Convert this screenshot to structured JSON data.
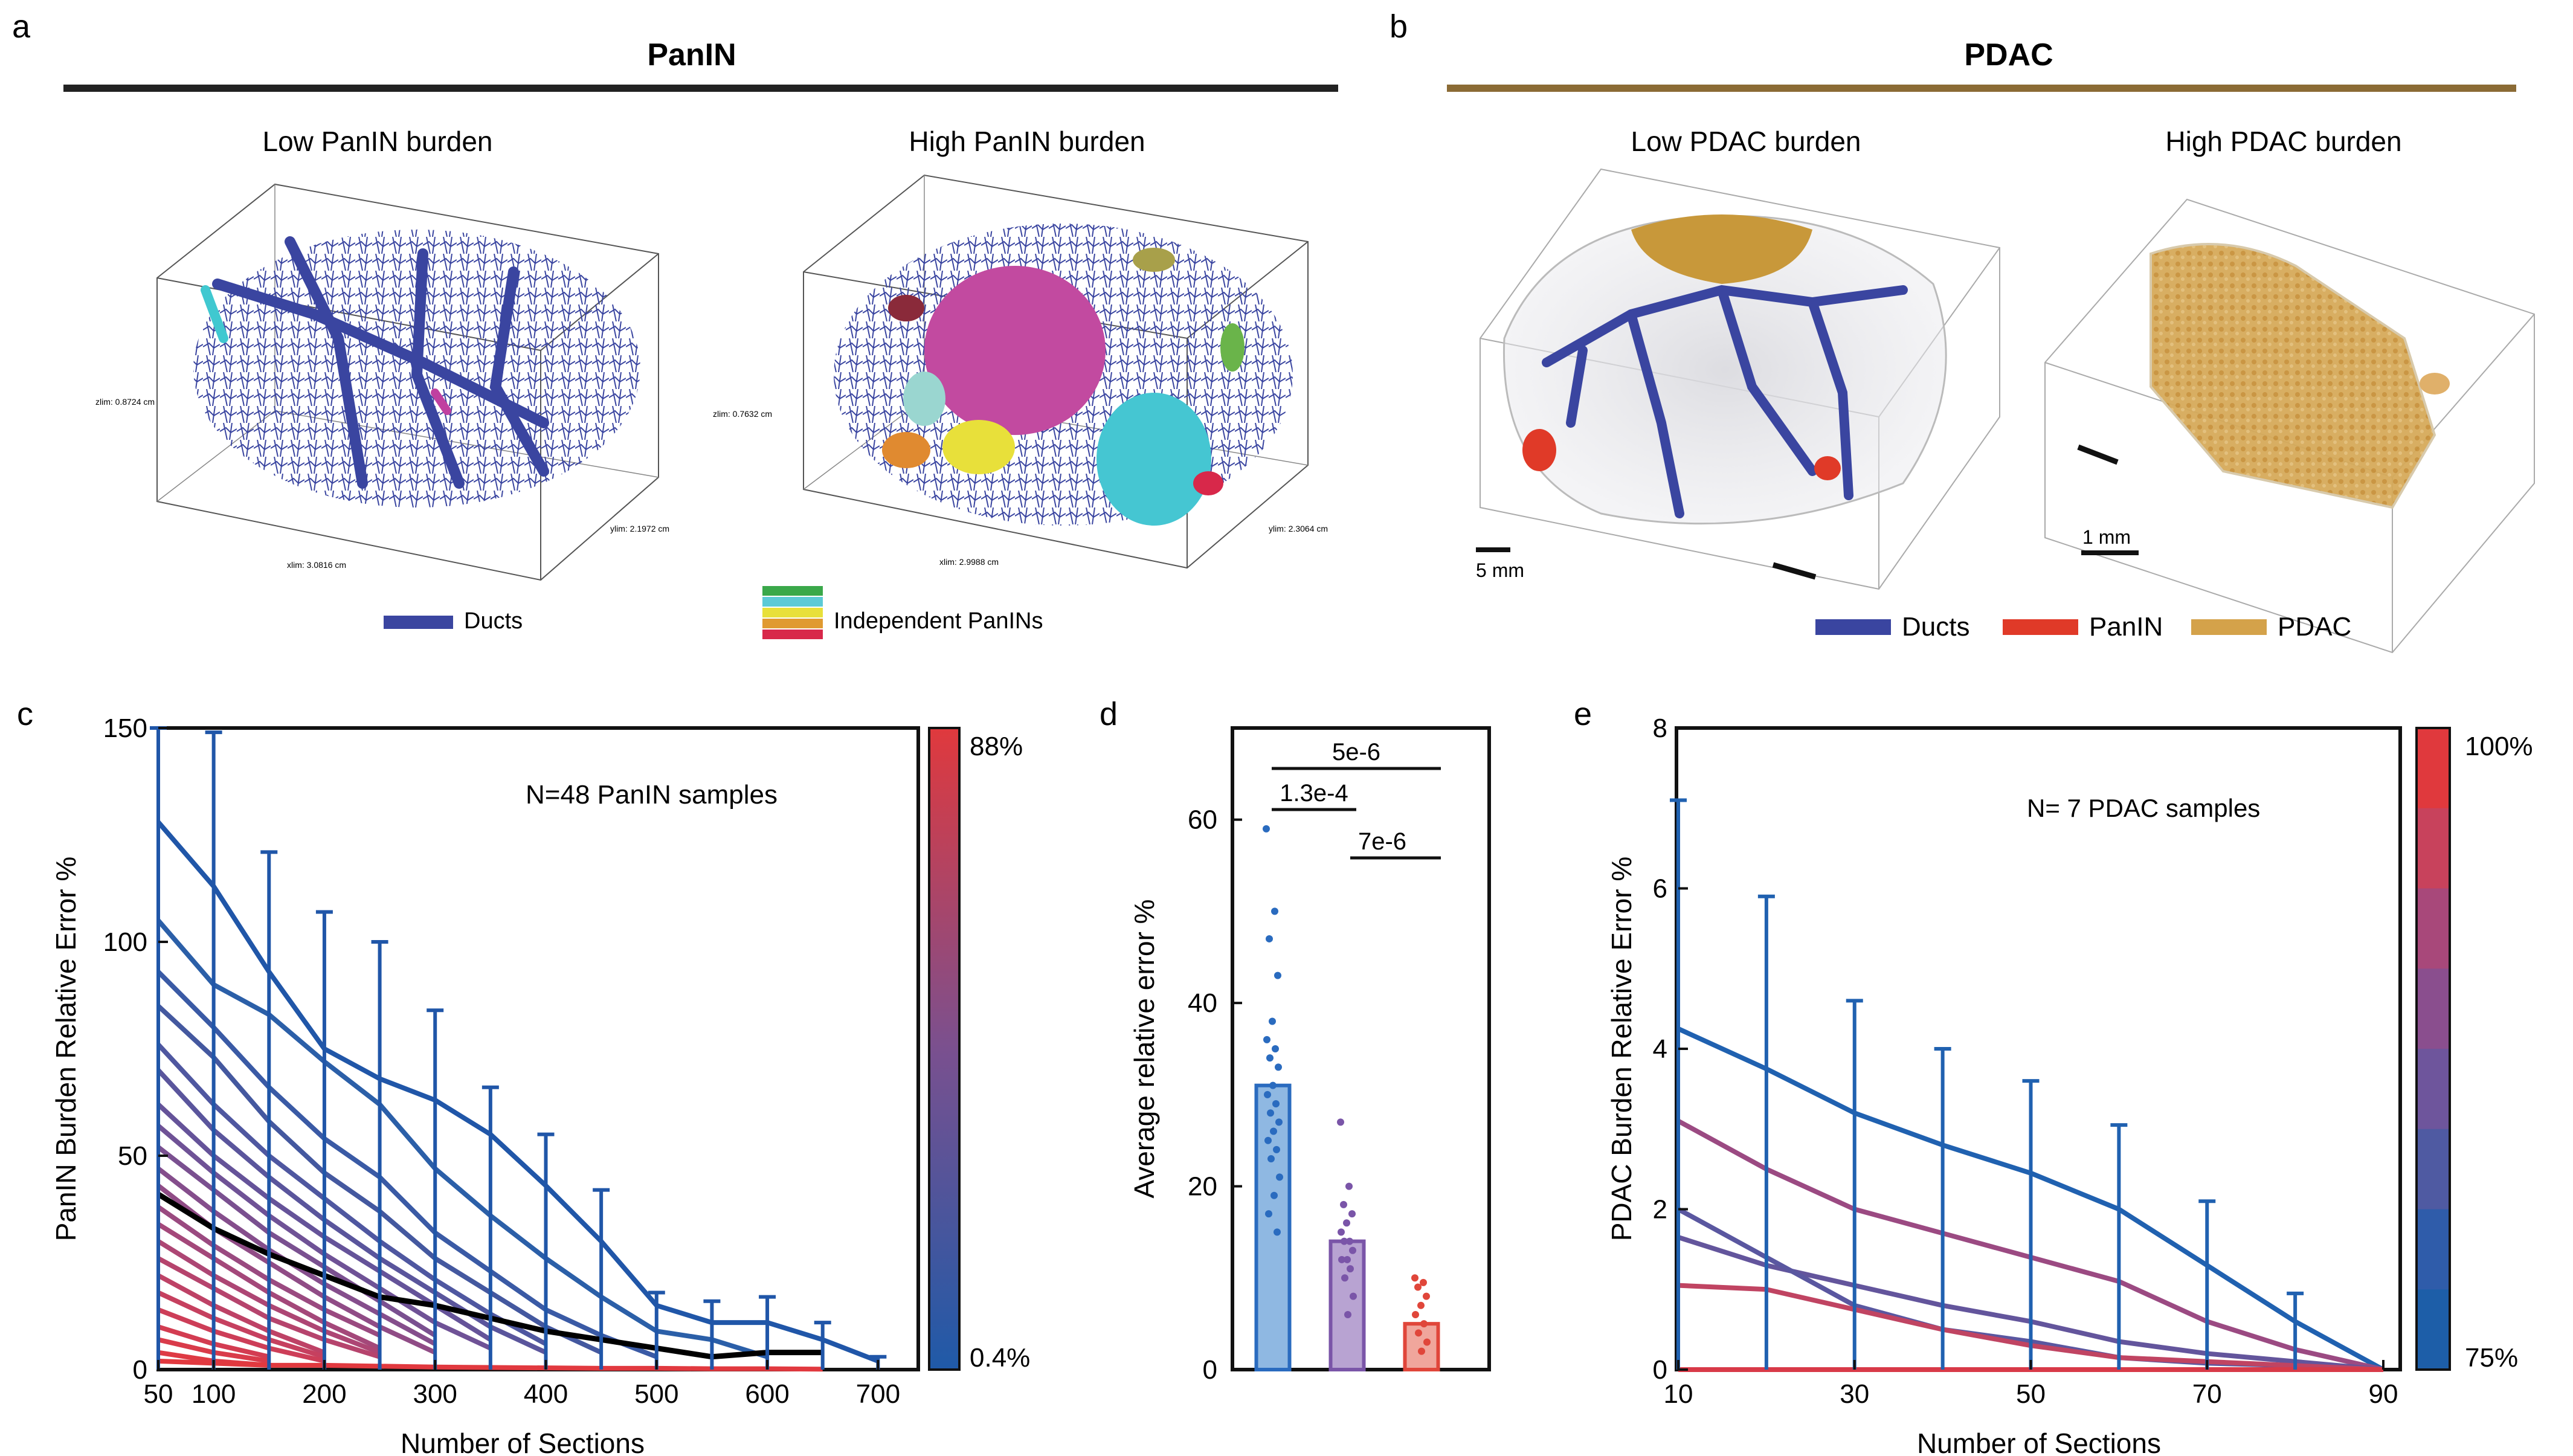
{
  "panels": {
    "a": {
      "letter": "a",
      "header": "PanIN",
      "left_title": "Low PanIN burden",
      "right_title": "High PanIN burden",
      "low_axes": {
        "x": "xlim: 3.0816 cm",
        "y": "ylim: 2.1972 cm",
        "z": "zlim: 0.8724 cm"
      },
      "high_axes": {
        "x": "xlim: 2.9988 cm",
        "y": "ylim: 2.3064 cm",
        "z": "zlim: 0.7632 cm"
      },
      "legend_ducts": "Ducts",
      "legend_independent": "Independent PanINs",
      "colors": {
        "ducts": "#3a45a0",
        "header_bar": "#222222"
      }
    },
    "b": {
      "letter": "b",
      "header": "PDAC",
      "left_title": "Low PDAC burden",
      "right_title": "High PDAC burden",
      "scale_left": "5 mm",
      "scale_right": "1 mm",
      "legend": [
        "Ducts",
        "PanIN",
        "PDAC"
      ],
      "colors": {
        "ducts": "#3a45a0",
        "panin": "#e03a28",
        "pdac": "#d4a24a",
        "header_bar": "#8b6b35"
      }
    }
  },
  "chart_data": [
    {
      "panel": "c",
      "type": "line",
      "annotation": "N=48 PanIN samples",
      "xlabel": "Number of Sections",
      "ylabel": "PanIN Burden Relative Error %",
      "x_ticks": [
        50,
        100,
        200,
        300,
        400,
        500,
        600,
        700
      ],
      "y_ticks": [
        0,
        50,
        100,
        150
      ],
      "xlim": [
        50,
        720
      ],
      "ylim": [
        0,
        150
      ],
      "colorbar": {
        "top": "88%",
        "bottom": "0.4%"
      },
      "series": [
        {
          "color": "#2056a8",
          "x": [
            50,
            100,
            150,
            200,
            250,
            300,
            350,
            400,
            450,
            500,
            550,
            600,
            650,
            700
          ],
          "y": [
            128,
            113,
            93,
            75,
            68,
            63,
            55,
            43,
            30,
            15,
            11,
            11,
            7,
            2
          ]
        },
        {
          "color": "#2b5fa8",
          "x": [
            50,
            100,
            150,
            200,
            250,
            300,
            350,
            400,
            450,
            500,
            550,
            600
          ],
          "y": [
            105,
            90,
            83,
            72,
            62,
            47,
            36,
            26,
            17,
            9,
            7,
            3
          ]
        },
        {
          "color": "#3a5aa5",
          "x": [
            50,
            100,
            150,
            200,
            250,
            300,
            350,
            400,
            450,
            500
          ],
          "y": [
            93,
            80,
            66,
            54,
            45,
            32,
            23,
            14,
            8,
            3
          ]
        },
        {
          "color": "#44589f",
          "x": [
            50,
            100,
            150,
            200,
            250,
            300,
            350,
            400,
            450
          ],
          "y": [
            85,
            73,
            58,
            46,
            37,
            26,
            18,
            10,
            4
          ]
        },
        {
          "color": "#4f57a0",
          "x": [
            50,
            100,
            150,
            200,
            250,
            300,
            350,
            400
          ],
          "y": [
            76,
            62,
            50,
            40,
            30,
            21,
            13,
            6
          ]
        },
        {
          "color": "#5a559c",
          "x": [
            50,
            100,
            150,
            200,
            250,
            300,
            350,
            400
          ],
          "y": [
            70,
            56,
            45,
            35,
            26,
            18,
            10,
            4
          ]
        },
        {
          "color": "#655399",
          "x": [
            50,
            100,
            150,
            200,
            250,
            300,
            350
          ],
          "y": [
            62,
            50,
            40,
            31,
            23,
            15,
            7
          ]
        },
        {
          "color": "#6f5296",
          "x": [
            50,
            100,
            150,
            200,
            250,
            300,
            350
          ],
          "y": [
            57,
            46,
            36,
            27,
            19,
            11,
            5
          ]
        },
        {
          "color": "#7a5090",
          "x": [
            50,
            100,
            150,
            200,
            250,
            300
          ],
          "y": [
            52,
            42,
            32,
            24,
            16,
            8
          ]
        },
        {
          "color": "#854e8c",
          "x": [
            50,
            100,
            150,
            200,
            250,
            300
          ],
          "y": [
            47,
            37,
            28,
            20,
            13,
            6
          ]
        },
        {
          "color": "#904c86",
          "x": [
            50,
            100,
            150,
            200,
            250,
            300
          ],
          "y": [
            43,
            33,
            25,
            17,
            10,
            4
          ]
        },
        {
          "color": "#9a4a80",
          "x": [
            50,
            100,
            150,
            200,
            250
          ],
          "y": [
            38,
            29,
            21,
            14,
            8
          ]
        },
        {
          "color": "#a4487a",
          "x": [
            50,
            100,
            150,
            200,
            250
          ],
          "y": [
            34,
            26,
            18,
            11,
            5
          ]
        },
        {
          "color": "#ad4674",
          "x": [
            50,
            100,
            150,
            200,
            250
          ],
          "y": [
            30,
            22,
            15,
            9,
            4
          ]
        },
        {
          "color": "#b6446d",
          "x": [
            50,
            100,
            150,
            200,
            250
          ],
          "y": [
            26,
            19,
            12,
            7,
            3
          ]
        },
        {
          "color": "#be4266",
          "x": [
            50,
            100,
            150,
            200
          ],
          "y": [
            22,
            15,
            9,
            4
          ]
        },
        {
          "color": "#c6405f",
          "x": [
            50,
            100,
            150,
            200
          ],
          "y": [
            18,
            12,
            7,
            3
          ]
        },
        {
          "color": "#cd3e58",
          "x": [
            50,
            100,
            150,
            200
          ],
          "y": [
            14,
            9,
            5,
            2
          ]
        },
        {
          "color": "#d33c51",
          "x": [
            50,
            100,
            150
          ],
          "y": [
            10,
            6,
            3
          ]
        },
        {
          "color": "#d93b4a",
          "x": [
            50,
            100,
            150
          ],
          "y": [
            7,
            4,
            2
          ]
        },
        {
          "color": "#de3a44",
          "x": [
            50,
            100,
            150
          ],
          "y": [
            4,
            2,
            1
          ]
        },
        {
          "color": "#e1393f",
          "x": [
            50,
            100,
            150,
            200,
            250,
            300,
            350,
            400,
            450,
            500,
            550,
            600,
            650
          ],
          "y": [
            2,
            1.5,
            1,
            1,
            0.8,
            0.6,
            0.5,
            0.4,
            0.3,
            0.3,
            0.2,
            0.2,
            0.1
          ]
        }
      ],
      "mean_series": {
        "color": "#000000",
        "x": [
          50,
          100,
          150,
          200,
          250,
          300,
          350,
          400,
          450,
          500,
          550,
          600,
          650
        ],
        "y": [
          41,
          33,
          27,
          22,
          17,
          15,
          12,
          9,
          7,
          5,
          3,
          4,
          4
        ]
      },
      "error_bars": {
        "color": "#2056a8",
        "x": [
          50,
          100,
          150,
          200,
          250,
          300,
          350,
          400,
          450,
          500,
          550,
          600,
          650,
          700
        ],
        "lo": [
          0,
          0,
          0,
          0,
          0,
          0,
          0,
          0,
          0,
          0,
          0,
          0,
          0,
          0
        ],
        "hi": [
          150,
          149,
          121,
          107,
          100,
          84,
          66,
          55,
          42,
          18,
          16,
          17,
          11,
          3
        ]
      }
    },
    {
      "panel": "d",
      "type": "bar",
      "ylabel": "Average relative error %",
      "y_ticks": [
        0,
        20,
        40,
        60
      ],
      "ylim": [
        0,
        70
      ],
      "values": [
        31,
        14,
        5
      ],
      "colors": {
        "fill": [
          "#8fb8e2",
          "#b8a3d2",
          "#f0a69c"
        ],
        "edge": [
          "#2a6bbf",
          "#7a55a8",
          "#e0463a"
        ]
      },
      "points": [
        [
          59,
          50,
          47,
          43,
          38,
          36,
          35,
          34,
          33,
          31,
          30,
          29,
          28,
          27,
          26,
          25,
          24,
          23,
          21,
          19,
          17,
          15
        ],
        [
          27,
          20,
          18,
          17,
          16,
          15,
          14,
          14,
          13,
          12,
          12,
          11,
          10,
          8,
          6
        ],
        [
          10,
          9.5,
          9,
          8,
          7,
          6,
          5,
          4,
          3,
          2
        ]
      ],
      "comparisons": [
        {
          "label": "5e-6"
        },
        {
          "label": "1.3e-4"
        },
        {
          "label": "7e-6"
        }
      ]
    },
    {
      "panel": "e",
      "type": "line",
      "annotation": "N= 7 PDAC samples",
      "xlabel": "Number of Sections",
      "ylabel": "PDAC Burden Relative Error %",
      "x_ticks": [
        10,
        30,
        50,
        70,
        90
      ],
      "y_ticks": [
        0,
        2,
        4,
        6,
        8
      ],
      "xlim": [
        10,
        90
      ],
      "ylim": [
        0,
        8
      ],
      "colorbar": {
        "top": "100%",
        "bottom": "75%"
      },
      "series": [
        {
          "color": "#2061b0",
          "x": [
            10,
            20,
            30,
            40,
            50,
            60,
            70,
            80,
            90
          ],
          "y": [
            4.25,
            3.75,
            3.2,
            2.8,
            2.45,
            2.0,
            1.3,
            0.6,
            0
          ]
        },
        {
          "color": "#9b4a82",
          "x": [
            10,
            20,
            30,
            40,
            50,
            60,
            70,
            80,
            90
          ],
          "y": [
            3.1,
            2.5,
            2.0,
            1.7,
            1.4,
            1.1,
            0.6,
            0.25,
            0
          ]
        },
        {
          "color": "#63559c",
          "x": [
            10,
            20,
            30,
            40,
            50,
            60,
            70,
            80,
            90
          ],
          "y": [
            1.65,
            1.3,
            1.05,
            0.8,
            0.6,
            0.35,
            0.2,
            0.1,
            0
          ]
        },
        {
          "color": "#5a57a0",
          "x": [
            10,
            20,
            30,
            40,
            50,
            60,
            70,
            80,
            90
          ],
          "y": [
            2.0,
            1.4,
            0.8,
            0.5,
            0.35,
            0.15,
            0.08,
            0.05,
            0
          ]
        },
        {
          "color": "#c04462",
          "x": [
            10,
            20,
            30,
            40,
            50,
            60,
            70,
            80,
            90
          ],
          "y": [
            1.05,
            1.0,
            0.75,
            0.5,
            0.3,
            0.15,
            0.1,
            0.05,
            0
          ]
        },
        {
          "color": "#d83a48",
          "x": [
            10,
            20,
            30,
            40,
            50,
            60,
            70,
            80,
            90
          ],
          "y": [
            0,
            0,
            0,
            0,
            0,
            0,
            0,
            0,
            0
          ]
        }
      ],
      "error_bars": {
        "color": "#2061b0",
        "x": [
          10,
          20,
          30,
          40,
          50,
          60,
          70,
          80
        ],
        "lo": [
          0,
          0,
          0,
          0,
          0,
          0,
          0,
          0
        ],
        "hi": [
          7.1,
          5.9,
          4.6,
          4.0,
          3.6,
          3.05,
          2.1,
          0.95
        ]
      }
    }
  ],
  "panel_letters": {
    "c": "c",
    "d": "d",
    "e": "e"
  }
}
